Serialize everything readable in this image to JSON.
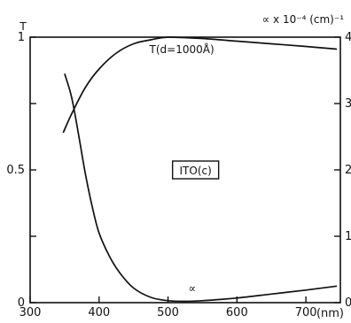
{
  "chart_data": {
    "type": "line",
    "left_axis_title": "T",
    "right_axis_title": "∝ x 10⁻⁴ (cm)⁻¹",
    "x": {
      "lim": [
        300,
        750
      ],
      "ticks": [
        300,
        400,
        500,
        600,
        700
      ],
      "tick_labels": [
        "300",
        "400",
        "500",
        "600",
        "700"
      ],
      "unit_label": "(nm)"
    },
    "y_left": {
      "lim": [
        0,
        1
      ],
      "ticks": [
        0,
        0.25,
        0.5,
        0.75,
        1
      ],
      "labeled_ticks": [
        {
          "value": 0,
          "label": "0"
        },
        {
          "value": 0.5,
          "label": "0.5"
        },
        {
          "value": 1,
          "label": "1"
        }
      ]
    },
    "y_right": {
      "lim": [
        0,
        4
      ],
      "ticks": [
        0,
        1,
        2,
        3,
        4
      ],
      "tick_labels": [
        "0",
        "1",
        "2",
        "3",
        "4"
      ]
    },
    "series": [
      {
        "name": "T(d=1000Å)",
        "axis": "left",
        "points": [
          [
            348,
            0.64
          ],
          [
            360,
            0.71
          ],
          [
            380,
            0.81
          ],
          [
            400,
            0.88
          ],
          [
            425,
            0.94
          ],
          [
            450,
            0.975
          ],
          [
            475,
            0.99
          ],
          [
            500,
            1.0
          ],
          [
            550,
            0.995
          ],
          [
            600,
            0.985
          ],
          [
            650,
            0.975
          ],
          [
            700,
            0.965
          ],
          [
            745,
            0.955
          ]
        ]
      },
      {
        "name": "∝",
        "axis": "right",
        "points": [
          [
            350,
            3.45
          ],
          [
            360,
            3.1
          ],
          [
            370,
            2.55
          ],
          [
            380,
            1.95
          ],
          [
            390,
            1.45
          ],
          [
            400,
            1.05
          ],
          [
            415,
            0.7
          ],
          [
            430,
            0.45
          ],
          [
            450,
            0.22
          ],
          [
            475,
            0.08
          ],
          [
            500,
            0.03
          ],
          [
            525,
            0.02
          ],
          [
            550,
            0.03
          ],
          [
            600,
            0.07
          ],
          [
            650,
            0.13
          ],
          [
            700,
            0.19
          ],
          [
            745,
            0.25
          ]
        ]
      }
    ],
    "annotations": [
      {
        "text": "T(d=1000Å)",
        "x": 520,
        "y_left": 0.94
      },
      {
        "text": "∝",
        "x": 535,
        "y_left": 0.04
      },
      {
        "text": "ITO(c)",
        "x": 540,
        "y_left": 0.5,
        "boxed": true
      }
    ],
    "grid": false,
    "legend": "none"
  }
}
